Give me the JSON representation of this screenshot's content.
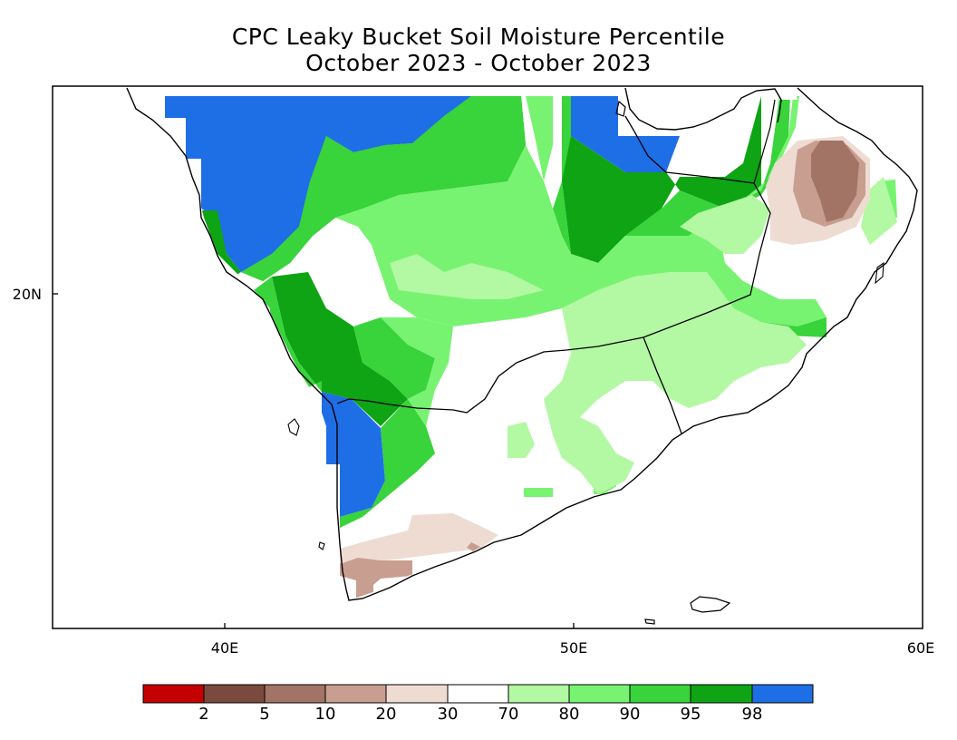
{
  "title": {
    "line1": "CPC Leaky Bucket Soil Moisture Percentile",
    "line2": "October 2023 - October 2023"
  },
  "axes": {
    "x_ticks": [
      "40E",
      "50E",
      "60E"
    ],
    "y_ticks": [
      "20N"
    ],
    "lon_range": [
      35,
      60
    ],
    "lat_range": [
      10.5,
      29
    ]
  },
  "legend": {
    "colors": {
      "lt2": "#c40000",
      "p2_5": "#7b4a3e",
      "p5_10": "#a17466",
      "p10_20": "#c89e90",
      "p20_30": "#eedcd3",
      "p30_70": "#ffffff",
      "p70_80": "#b3f8a3",
      "p80_90": "#78f371",
      "p90_95": "#39d33b",
      "p95_98": "#0ea414",
      "gt98": "#1e6ee6"
    },
    "labels": [
      "2",
      "5",
      "10",
      "20",
      "30",
      "70",
      "80",
      "90",
      "95",
      "98"
    ]
  }
}
